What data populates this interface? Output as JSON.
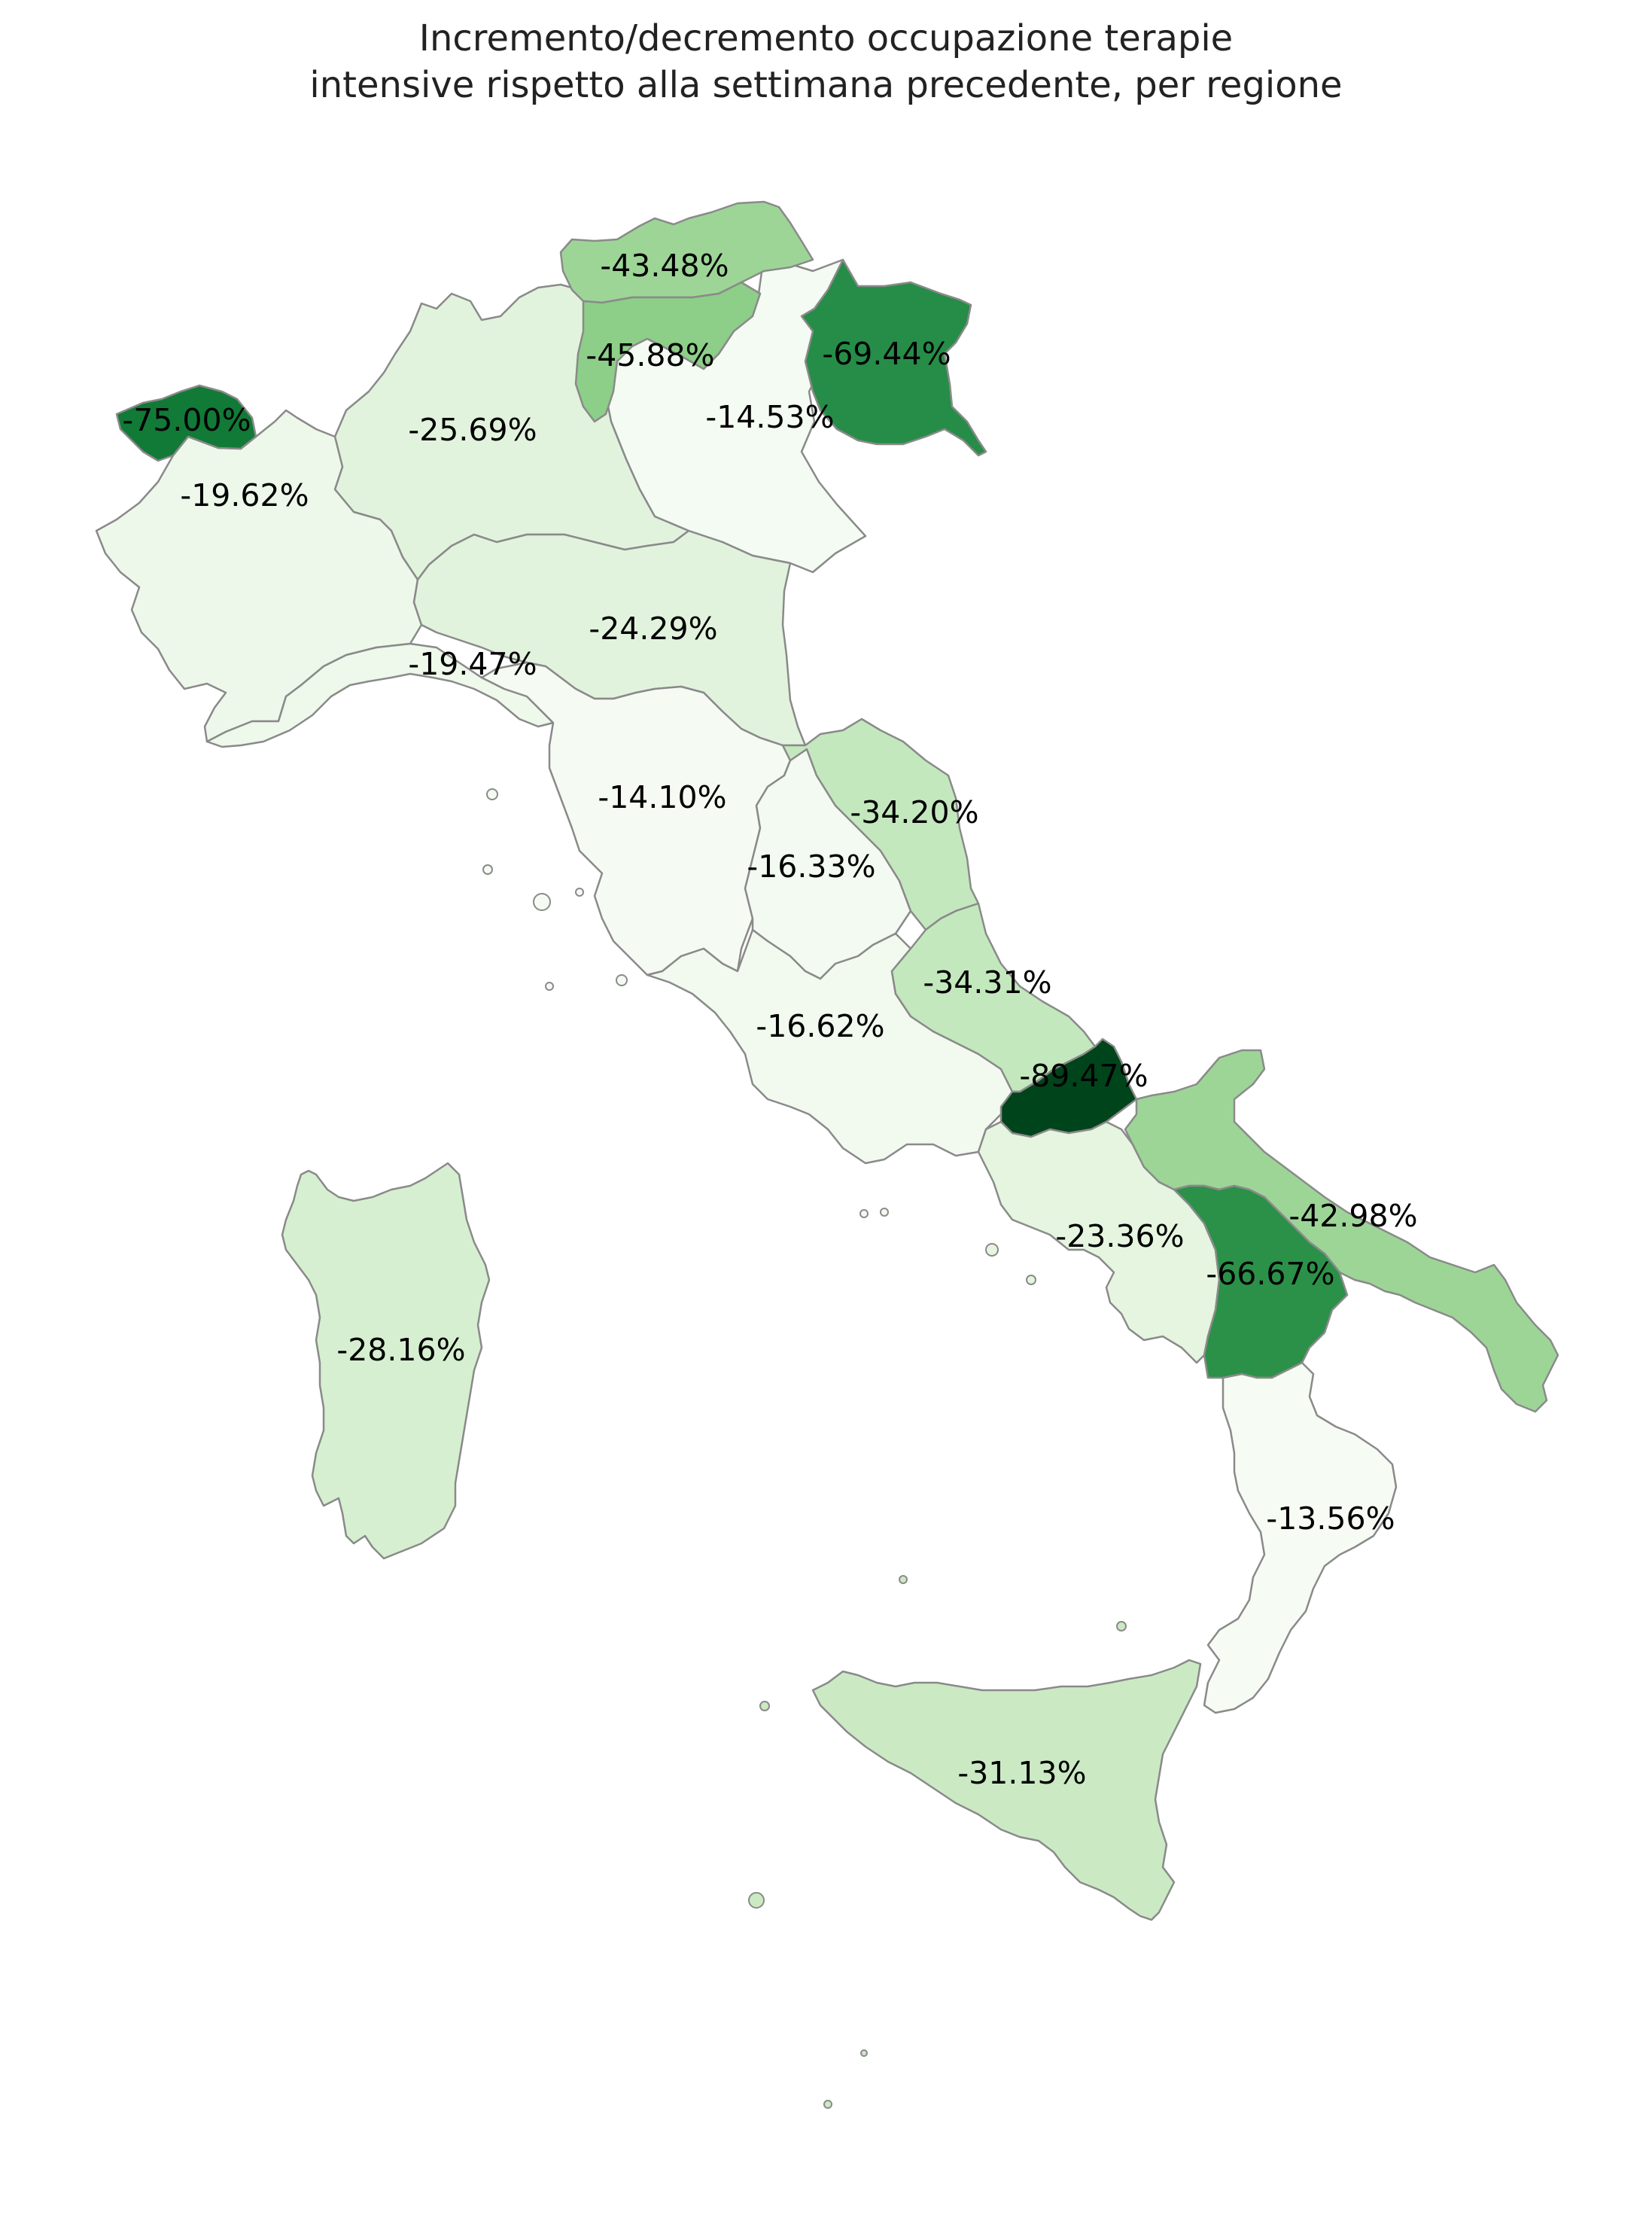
{
  "title": {
    "line1": "Incremento/decremento occupazione terapie",
    "line2": "intensive rispetto alla settimana precedente, per regione"
  },
  "colors": {
    "region_border": "#8a8a8a",
    "scale": [
      "#f7fcf5",
      "#e5f5e0",
      "#c7e9c0",
      "#a1d99b",
      "#74c476",
      "#31a354",
      "#006d2c",
      "#00441b"
    ]
  },
  "regions": [
    {
      "id": "valle-d-aosta",
      "label": "-75.00%",
      "value": -75.0,
      "color": "#117a37"
    },
    {
      "id": "piemonte",
      "label": "-19.62%",
      "value": -19.62,
      "color": "#edf8ea"
    },
    {
      "id": "lombardia",
      "label": "-25.69%",
      "value": -25.69,
      "color": "#e2f3dd"
    },
    {
      "id": "trentino-alto-adige-bolzano",
      "label": "-43.48%",
      "value": -43.48,
      "color": "#9dd597"
    },
    {
      "id": "trentino-alto-adige-trento",
      "label": "-45.88%",
      "value": -45.88,
      "color": "#8dce88"
    },
    {
      "id": "veneto",
      "label": "-14.53%",
      "value": -14.53,
      "color": "#f4fbf2"
    },
    {
      "id": "friuli-venezia-giulia",
      "label": "-69.44%",
      "value": -69.44,
      "color": "#258d47"
    },
    {
      "id": "liguria",
      "label": "-19.47%",
      "value": -19.47,
      "color": "#eef8eb"
    },
    {
      "id": "emilia-romagna",
      "label": "-24.29%",
      "value": -24.29,
      "color": "#e2f3dd"
    },
    {
      "id": "toscana",
      "label": "-14.10%",
      "value": -14.1,
      "color": "#f5fbf3"
    },
    {
      "id": "umbria",
      "label": "-16.33%",
      "value": -16.33,
      "color": "#f3faf1"
    },
    {
      "id": "marche",
      "label": "-34.20%",
      "value": -34.2,
      "color": "#c4e8be"
    },
    {
      "id": "lazio",
      "label": "-16.62%",
      "value": -16.62,
      "color": "#f2faf0"
    },
    {
      "id": "abruzzo",
      "label": "-34.31%",
      "value": -34.31,
      "color": "#c4e8be"
    },
    {
      "id": "molise",
      "label": "-89.47%",
      "value": -89.47,
      "color": "#00441b"
    },
    {
      "id": "campania",
      "label": "-23.36%",
      "value": -23.36,
      "color": "#e5f5e0"
    },
    {
      "id": "puglia",
      "label": "-42.98%",
      "value": -42.98,
      "color": "#9dd597"
    },
    {
      "id": "basilicata",
      "label": "-66.67%",
      "value": -66.67,
      "color": "#2b9148"
    },
    {
      "id": "calabria",
      "label": "-13.56%",
      "value": -13.56,
      "color": "#f6fbf4"
    },
    {
      "id": "sicilia",
      "label": "-31.13%",
      "value": -31.13,
      "color": "#cbeac4"
    },
    {
      "id": "sardegna",
      "label": "-28.16%",
      "value": -28.16,
      "color": "#d6efd0"
    }
  ]
}
